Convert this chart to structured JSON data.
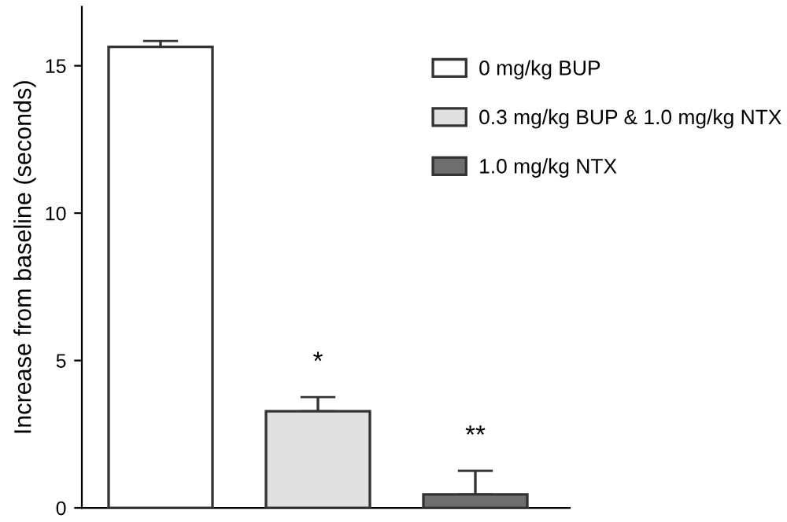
{
  "chart_data": {
    "type": "bar",
    "ylabel": "Increase from baseline (seconds)",
    "categories": [
      null,
      null,
      null
    ],
    "series": [
      {
        "name": "0 mg/kg BUP",
        "color": "#ffffff",
        "values": [
          15.64,
          null,
          null
        ],
        "errors": [
          0.2,
          null,
          null
        ]
      },
      {
        "name": "0.3 mg/kg BUP & 1.0 mg/kg NTX",
        "color": "#e0e0e0",
        "values": [
          null,
          3.28,
          null
        ],
        "errors": [
          null,
          0.48,
          null
        ]
      },
      {
        "name": "1.0 mg/kg NTX",
        "color": "#6e6e6e",
        "values": [
          null,
          null,
          0.46
        ],
        "errors": [
          null,
          null,
          0.8
        ]
      }
    ],
    "annotations": [
      "*",
      "**"
    ],
    "ylim": [
      0,
      17
    ],
    "yticks": [
      0,
      5,
      10,
      15
    ],
    "grid": false,
    "legend": "top right"
  }
}
